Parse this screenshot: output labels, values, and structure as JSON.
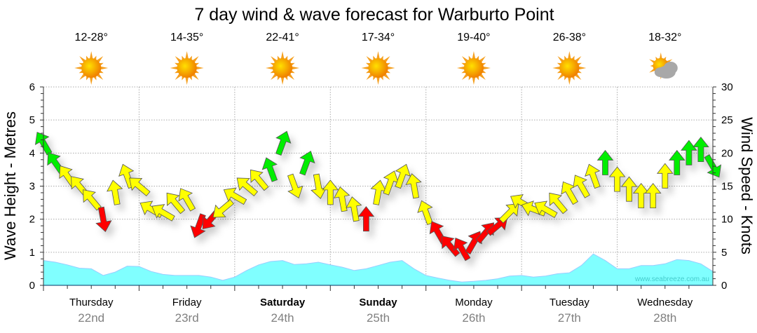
{
  "chart_data": {
    "type": "line",
    "title": "7 day wind & wave forecast for Warburto Point",
    "ylabel": "Wave Height - Metres",
    "y2label": "Wind Speed - Knots",
    "ylim": [
      0,
      6
    ],
    "y2lim": [
      0,
      30
    ],
    "yticks": [
      "0",
      "1",
      "2",
      "3",
      "4",
      "5",
      "6"
    ],
    "y2ticks": [
      "0",
      "5",
      "10",
      "15",
      "20",
      "25",
      "30"
    ],
    "grid": true,
    "watermark": "www.seabreeze.com.au",
    "days": [
      {
        "day": "Thursday",
        "date": "22nd",
        "temp": "12-28°",
        "weather": "sunny",
        "bold": false
      },
      {
        "day": "Friday",
        "date": "23rd",
        "temp": "14-35°",
        "weather": "sunny",
        "bold": false
      },
      {
        "day": "Saturday",
        "date": "24th",
        "temp": "22-41°",
        "weather": "sunny",
        "bold": true
      },
      {
        "day": "Sunday",
        "date": "25th",
        "temp": "17-34°",
        "weather": "sunny",
        "bold": true
      },
      {
        "day": "Monday",
        "date": "26th",
        "temp": "19-40°",
        "weather": "sunny",
        "bold": false
      },
      {
        "day": "Tuesday",
        "date": "27th",
        "temp": "26-38°",
        "weather": "sunny",
        "bold": false
      },
      {
        "day": "Wednesday",
        "date": "28th",
        "temp": "18-32°",
        "weather": "partly-cloudy",
        "bold": false
      }
    ],
    "interval_hours": 3,
    "wave_height_m": [
      0.75,
      0.7,
      0.62,
      0.52,
      0.5,
      0.3,
      0.4,
      0.58,
      0.57,
      0.42,
      0.33,
      0.3,
      0.3,
      0.3,
      0.25,
      0.15,
      0.25,
      0.45,
      0.62,
      0.72,
      0.75,
      0.63,
      0.65,
      0.7,
      0.62,
      0.55,
      0.45,
      0.5,
      0.6,
      0.7,
      0.75,
      0.5,
      0.3,
      0.22,
      0.15,
      0.1,
      0.12,
      0.15,
      0.2,
      0.28,
      0.3,
      0.25,
      0.28,
      0.35,
      0.38,
      0.6,
      0.95,
      0.75,
      0.5,
      0.5,
      0.6,
      0.6,
      0.65,
      0.78,
      0.75,
      0.65,
      0.42
    ],
    "wind_speed_kts": [
      21.5,
      18.5,
      16.5,
      15,
      13,
      10,
      14,
      16.5,
      15,
      11.5,
      11,
      12.5,
      13,
      9,
      10,
      11.5,
      13.5,
      15,
      16,
      17.5,
      21.5,
      15,
      18.5,
      15,
      14,
      13,
      11.5,
      10,
      14,
      15.5,
      16.5,
      15,
      11,
      8,
      6,
      5.5,
      6.5,
      8,
      9,
      11,
      12.5,
      11.5,
      11.5,
      12.5,
      14,
      15,
      16.5,
      18.5,
      16,
      14.5,
      13.5,
      13.5,
      16.5,
      18.5,
      20,
      20.5,
      18
    ],
    "wind_arrow_deg": [
      -30,
      -35,
      -35,
      -40,
      -40,
      170,
      -10,
      -20,
      -50,
      -60,
      -60,
      -40,
      -30,
      200,
      220,
      230,
      -60,
      -50,
      -40,
      -20,
      20,
      160,
      20,
      170,
      0,
      -10,
      -10,
      0,
      10,
      20,
      20,
      -10,
      -20,
      -30,
      -40,
      -30,
      30,
      40,
      50,
      45,
      -60,
      -70,
      -60,
      -40,
      -30,
      -30,
      -20,
      0,
      0,
      0,
      0,
      0,
      0,
      0,
      0,
      0,
      150
    ],
    "wind_colors": {
      "light": "#ff0000",
      "moderate": "#ffff00",
      "strong": "#00ee00"
    },
    "wind_thresholds_kts": [
      10.5,
      17.5
    ],
    "wave_fill": "#80ffff"
  }
}
